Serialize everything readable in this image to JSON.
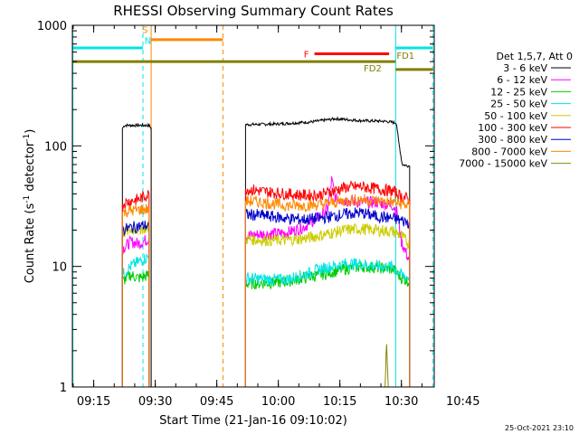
{
  "chart_data": {
    "type": "line",
    "title": "RHESSI Observing Summary Count Rates",
    "xlabel": "Start Time (21-Jan-16 09:10:02)",
    "ylabel": "Count Rate (s",
    "ylabel_sup": "-1",
    "ylabel_tail": " detector",
    "ylabel_close": ")",
    "yscale": "log",
    "ylim": [
      1,
      1000
    ],
    "xlim_minutes": [
      9.8,
      98.0
    ],
    "x_ticks": [
      {
        "m": 15,
        "label": "09:15"
      },
      {
        "m": 30,
        "label": "09:30"
      },
      {
        "m": 45,
        "label": "09:45"
      },
      {
        "m": 60,
        "label": "10:00"
      },
      {
        "m": 75,
        "label": "10:15"
      },
      {
        "m": 90,
        "label": "10:30"
      },
      {
        "m": 105,
        "label": "10:45"
      }
    ],
    "y_ticks": [
      {
        "v": 1,
        "label": "1"
      },
      {
        "v": 10,
        "label": "10"
      },
      {
        "v": 100,
        "label": "100"
      },
      {
        "v": 1000,
        "label": "1000"
      }
    ],
    "legend_title": "Det 1,5,7, Att 0",
    "series": [
      {
        "name": "3 - 6 keV",
        "color": "#000000",
        "segments": [
          [
            [
              22.0,
              140
            ],
            [
              22.5,
              148
            ],
            [
              28.5,
              148
            ],
            [
              29.0,
              140
            ]
          ],
          [
            [
              52.0,
              150
            ],
            [
              60,
              152
            ],
            [
              68,
              158
            ],
            [
              74,
              168
            ],
            [
              80,
              162
            ],
            [
              86,
              160
            ],
            [
              88.8,
              155
            ],
            [
              89.3,
              110
            ],
            [
              90.2,
              70
            ],
            [
              92.0,
              68
            ]
          ]
        ]
      },
      {
        "name": "6 - 12 keV",
        "color": "#ff00ff",
        "segments": [
          [
            [
              22.0,
              14
            ],
            [
              24,
              16
            ],
            [
              26,
              15.5
            ],
            [
              28.5,
              17
            ]
          ],
          [
            [
              52.0,
              18
            ],
            [
              56,
              18.5
            ],
            [
              62,
              19
            ],
            [
              66,
              21
            ],
            [
              70,
              26
            ],
            [
              72,
              30
            ],
            [
              73,
              52
            ],
            [
              74,
              36
            ],
            [
              80,
              34
            ],
            [
              84,
              34
            ],
            [
              88,
              32
            ],
            [
              89,
              28
            ],
            [
              90,
              16
            ],
            [
              92,
              11
            ]
          ]
        ]
      },
      {
        "name": "12 - 25 keV",
        "color": "#00cc00",
        "segments": [
          [
            [
              22.0,
              7.5
            ],
            [
              24,
              8.5
            ],
            [
              26,
              8
            ],
            [
              28.5,
              8.5
            ]
          ],
          [
            [
              52.0,
              7.2
            ],
            [
              58,
              7.3
            ],
            [
              62,
              7.5
            ],
            [
              66,
              8
            ],
            [
              70,
              8.5
            ],
            [
              76,
              9.5
            ],
            [
              80,
              10
            ],
            [
              84,
              9.8
            ],
            [
              88,
              9.5
            ],
            [
              90,
              8
            ],
            [
              92,
              7.5
            ]
          ]
        ]
      },
      {
        "name": "25 - 50 keV",
        "color": "#00e5e5",
        "segments": [
          [
            [
              22.0,
              8.5
            ],
            [
              24,
              10
            ],
            [
              26,
              11
            ],
            [
              28.5,
              12
            ]
          ],
          [
            [
              52.0,
              8
            ],
            [
              58,
              7.8
            ],
            [
              62,
              7.8
            ],
            [
              66,
              8.5
            ],
            [
              70,
              9.5
            ],
            [
              76,
              10.5
            ],
            [
              80,
              10.5
            ],
            [
              84,
              10
            ],
            [
              88,
              10
            ],
            [
              90,
              8.5
            ],
            [
              92,
              8
            ]
          ]
        ]
      },
      {
        "name": "50 - 100 keV",
        "color": "#cccc00",
        "segments": [
          [
            [
              22.0,
              19
            ],
            [
              24,
              20
            ],
            [
              26,
              20.5
            ],
            [
              28.5,
              21
            ]
          ],
          [
            [
              52.0,
              17
            ],
            [
              56,
              16.5
            ],
            [
              62,
              16.5
            ],
            [
              66,
              17
            ],
            [
              70,
              18
            ],
            [
              76,
              20
            ],
            [
              80,
              20.5
            ],
            [
              84,
              20
            ],
            [
              88,
              19.5
            ],
            [
              90,
              18
            ],
            [
              92,
              15
            ]
          ]
        ]
      },
      {
        "name": "100 - 300 keV",
        "color": "#ff0000",
        "segments": [
          [
            [
              22.0,
              33
            ],
            [
              24,
              35
            ],
            [
              26,
              36
            ],
            [
              28.5,
              40
            ]
          ],
          [
            [
              52.0,
              44
            ],
            [
              56,
              42
            ],
            [
              62,
              40
            ],
            [
              66,
              39
            ],
            [
              70,
              39
            ],
            [
              76,
              45
            ],
            [
              80,
              46
            ],
            [
              84,
              44
            ],
            [
              88,
              42
            ],
            [
              90,
              38
            ],
            [
              92,
              36
            ]
          ]
        ]
      },
      {
        "name": "300 - 800 keV",
        "color": "#0000cc",
        "segments": [
          [
            [
              22.0,
              20
            ],
            [
              24,
              21
            ],
            [
              26,
              21.5
            ],
            [
              28.5,
              22
            ]
          ],
          [
            [
              52.0,
              27
            ],
            [
              56,
              26.5
            ],
            [
              62,
              25
            ],
            [
              66,
              24.5
            ],
            [
              70,
              25
            ],
            [
              76,
              27
            ],
            [
              80,
              28
            ],
            [
              84,
              26
            ],
            [
              88,
              25
            ],
            [
              90,
              24
            ],
            [
              92,
              23
            ]
          ]
        ]
      },
      {
        "name": "800 - 7000 keV",
        "color": "#ff8800",
        "segments": [
          [
            [
              22.0,
              28
            ],
            [
              24,
              29
            ],
            [
              26,
              29.5
            ],
            [
              28.5,
              30
            ]
          ],
          [
            [
              52.0,
              35
            ],
            [
              56,
              34
            ],
            [
              62,
              32
            ],
            [
              66,
              32
            ],
            [
              70,
              32.5
            ],
            [
              76,
              35
            ],
            [
              80,
              36
            ],
            [
              84,
              35
            ],
            [
              88,
              34
            ],
            [
              90,
              33
            ],
            [
              92,
              32
            ]
          ]
        ]
      },
      {
        "name": "7000 - 15000 keV",
        "color": "#888800",
        "segments": [
          [
            [
              86.0,
              1.0
            ],
            [
              86.4,
              2.4
            ],
            [
              86.8,
              1.0
            ]
          ]
        ]
      }
    ],
    "vlines": [
      {
        "m": 9.9,
        "color": "#00e5e5",
        "style": "solid"
      },
      {
        "m": 27.0,
        "color": "#00e5e5",
        "style": "dashed"
      },
      {
        "m": 29.0,
        "color": "#ff8800",
        "style": "solid"
      },
      {
        "m": 46.5,
        "color": "#ff8800",
        "style": "dashed"
      },
      {
        "m": 88.6,
        "color": "#00e5e5",
        "style": "solid"
      },
      {
        "m": 97.7,
        "color": "#00e5e5",
        "style": "dashed"
      }
    ],
    "bars": [
      {
        "label": "",
        "color": "#00e5e5",
        "m0": 9.9,
        "m1": 27.0,
        "v": 650
      },
      {
        "label": "",
        "color": "#00e5e5",
        "m0": 88.6,
        "m1": 97.7,
        "v": 650
      },
      {
        "label": "",
        "color": "#ff8800",
        "m0": 29.0,
        "m1": 46.5,
        "v": 760
      },
      {
        "label": "F",
        "color": "#ff0000",
        "m0": 68.8,
        "m1": 87.0,
        "v": 580
      },
      {
        "label": "",
        "color": "#808000",
        "m0": 9.9,
        "m1": 88.6,
        "v": 500
      },
      {
        "label": "",
        "color": "#808000",
        "m0": 88.6,
        "m1": 97.7,
        "v": 430
      }
    ],
    "annotations": [
      {
        "text": "S",
        "color": "#ff8800",
        "m": 27.5,
        "v": 860
      },
      {
        "text": "N",
        "color": "#00e5e5",
        "m": 28.2,
        "v": 700
      },
      {
        "text": "FD1",
        "color": "#808000",
        "m": 91.0,
        "v": 530
      },
      {
        "text": "FD2",
        "color": "#808000",
        "m": 83.0,
        "v": 415
      }
    ],
    "legend_placement": "right",
    "grid": false
  },
  "footer": {
    "date_stamp": "25-Oct-2021 23:10"
  }
}
